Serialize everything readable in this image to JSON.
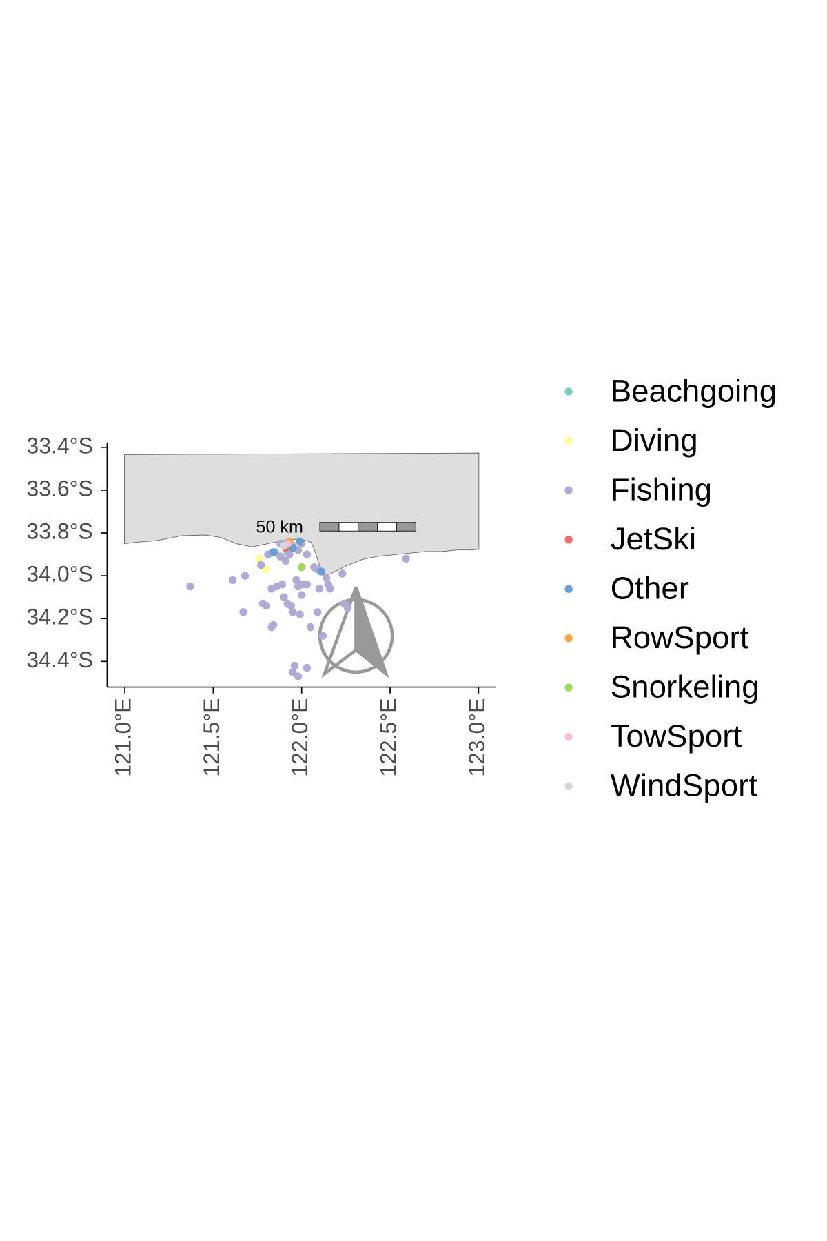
{
  "chart_data": {
    "type": "scatter",
    "xlim": [
      120.9,
      123.1
    ],
    "ylim": [
      -34.52,
      -33.39
    ],
    "xticks": [
      {
        "value": 121.0,
        "label": "121.0°E"
      },
      {
        "value": 121.5,
        "label": "121.5°E"
      },
      {
        "value": 122.0,
        "label": "122.0°E"
      },
      {
        "value": 122.5,
        "label": "122.5°E"
      },
      {
        "value": 123.0,
        "label": "123.0°E"
      }
    ],
    "yticks": [
      {
        "value": -33.4,
        "label": "33.4°S"
      },
      {
        "value": -33.6,
        "label": "33.6°S"
      },
      {
        "value": -33.8,
        "label": "33.8°S"
      },
      {
        "value": -34.0,
        "label": "34.0°S"
      },
      {
        "value": -34.2,
        "label": "34.2°S"
      },
      {
        "value": -34.4,
        "label": "34.4°S"
      }
    ],
    "scale_bar_label": "50 km",
    "series": [
      {
        "name": "Beachgoing",
        "color": "#7fc9bd",
        "x": [
          121.92
        ],
        "y": [
          -33.89
        ]
      },
      {
        "name": "Diving",
        "color": "#fdfd9a",
        "x": [
          121.8,
          121.76
        ],
        "y": [
          -33.97,
          -33.92
        ]
      },
      {
        "name": "Fishing",
        "color": "#b0abd4",
        "x": [
          121.37,
          121.61,
          121.68,
          121.67,
          121.78,
          121.8,
          121.83,
          121.84,
          121.77,
          121.83,
          121.86,
          121.89,
          121.9,
          121.92,
          121.94,
          121.95,
          121.97,
          121.98,
          121.99,
          122.0,
          122.01,
          122.03,
          121.99,
          122.05,
          122.09,
          122.12,
          122.1,
          122.16,
          122.15,
          122.23,
          122.24,
          122.26,
          121.96,
          121.98,
          121.95,
          122.03,
          121.81,
          121.85,
          121.88,
          121.91,
          121.93,
          121.98,
          122.0,
          122.03,
          122.07,
          122.09,
          122.14,
          122.59,
          121.88,
          121.95
        ],
        "y": [
          -34.05,
          -34.02,
          -34.0,
          -34.17,
          -34.13,
          -34.14,
          -34.24,
          -34.23,
          -33.95,
          -34.06,
          -34.05,
          -34.04,
          -34.1,
          -34.13,
          -34.14,
          -34.17,
          -34.02,
          -34.05,
          -34.04,
          -34.09,
          -34.04,
          -34.04,
          -34.18,
          -34.24,
          -34.17,
          -34.28,
          -34.06,
          -34.06,
          -34.04,
          -33.99,
          -34.13,
          -34.15,
          -34.42,
          -34.47,
          -34.45,
          -34.43,
          -33.9,
          -33.89,
          -33.91,
          -33.93,
          -33.9,
          -33.88,
          -33.85,
          -33.9,
          -33.96,
          -33.97,
          -34.01,
          -33.92,
          -33.85,
          -33.86
        ]
      },
      {
        "name": "JetSki",
        "color": "#ef6f6a",
        "x": [
          121.91
        ],
        "y": [
          -33.87
        ]
      },
      {
        "name": "Other",
        "color": "#6a9fd0",
        "x": [
          121.84,
          121.99,
          122.11,
          121.95
        ],
        "y": [
          -33.89,
          -33.84,
          -33.98,
          -33.87
        ]
      },
      {
        "name": "RowSport",
        "color": "#f7a84a",
        "x": [
          121.93
        ],
        "y": [
          -33.84
        ]
      },
      {
        "name": "Snorkeling",
        "color": "#a2d95a",
        "x": [
          122.0
        ],
        "y": [
          -33.96
        ]
      },
      {
        "name": "TowSport",
        "color": "#f8bcd9",
        "x": [
          121.92
        ],
        "y": [
          -33.85
        ]
      },
      {
        "name": "WindSport",
        "color": "#d6d6d6",
        "x": [
          121.9
        ],
        "y": [
          -33.86
        ]
      }
    ]
  }
}
